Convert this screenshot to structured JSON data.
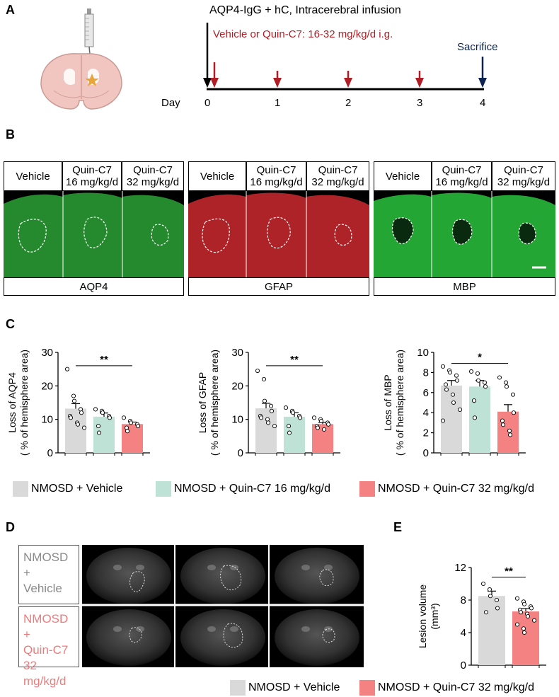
{
  "panel_a": {
    "label": "A",
    "title": "AQP4-IgG + hC, Intracerebral infusion",
    "treatment": "Vehicle or Quin-C7: 16-32 mg/kg/d i.g.",
    "sacrifice": "Sacrifice",
    "day_label": "Day",
    "days": [
      "0",
      "1",
      "2",
      "3",
      "4"
    ],
    "colors": {
      "treatment": "#b01d24",
      "sacrifice": "#0d2350"
    }
  },
  "panel_b": {
    "label": "B",
    "groups": [
      {
        "marker": "AQP4",
        "headers": [
          "Vehicle",
          "Quin-C7\n16 mg/kg/d",
          "Quin-C7\n32 mg/kg/d"
        ],
        "color": "#2a9a34"
      },
      {
        "marker": "GFAP",
        "headers": [
          "Vehicle",
          "Quin-C7\n16 mg/kg/d",
          "Quin-C7\n32 mg/kg/d"
        ],
        "color": "#b8252a"
      },
      {
        "marker": "MBP",
        "headers": [
          "Vehicle",
          "Quin-C7\n16 mg/kg/d",
          "Quin-C7\n32 mg/kg/d"
        ],
        "color": "#28b83a"
      }
    ]
  },
  "panel_c": {
    "label": "C"
  },
  "panel_d": {
    "label": "D",
    "row1_label": "NMOSD +\nVehicle",
    "row2_label": "NMOSD +\nQuin-C7 32\nmg/kg/d"
  },
  "panel_e": {
    "label": "E"
  },
  "legend_c": [
    {
      "name": "NMOSD + Vehicle",
      "color": "#d9d9d9"
    },
    {
      "name": "NMOSD + Quin-C7 16 mg/kg/d",
      "color": "#bfe2d6"
    },
    {
      "name": "NMOSD + Quin-C7 32 mg/kg/d",
      "color": "#f48282"
    }
  ],
  "legend_e": [
    {
      "name": "NMOSD + Vehicle",
      "color": "#d9d9d9"
    },
    {
      "name": "NMOSD + Quin-C7 32 mg/kg/d",
      "color": "#f48282"
    }
  ],
  "chart_data": [
    {
      "type": "bar",
      "ylabel": "Loss of AQP4\n( % of hemisphere area)",
      "ylim": [
        0,
        30
      ],
      "yticks": [
        0,
        10,
        20,
        30
      ],
      "categories": [
        "NMOSD + Vehicle",
        "NMOSD + Quin-C7 16 mg/kg/d",
        "NMOSD + Quin-C7 32 mg/kg/d"
      ],
      "values": [
        13.2,
        10.8,
        8.6
      ],
      "errors": [
        1.5,
        1.1,
        0.6
      ],
      "points": [
        [
          25,
          17,
          15.5,
          13,
          12,
          11,
          10.5,
          9,
          8.5,
          7.5
        ],
        [
          13,
          12.5,
          12,
          11,
          10.5,
          8,
          6
        ],
        [
          10.5,
          9.5,
          9,
          8.5,
          8,
          7.5,
          6.5
        ]
      ],
      "significance": {
        "label": "**",
        "from": 0,
        "to": 2,
        "y": 26
      }
    },
    {
      "type": "bar",
      "ylabel": "Loss of GFAP\n( % of hemisphere area)",
      "ylim": [
        0,
        30
      ],
      "yticks": [
        0,
        10,
        20,
        30
      ],
      "categories": [
        "NMOSD + Vehicle",
        "NMOSD + Quin-C7 16 mg/kg/d",
        "NMOSD + Quin-C7 32 mg/kg/d"
      ],
      "values": [
        13.3,
        10.8,
        8.6
      ],
      "errors": [
        1.5,
        1.2,
        0.5
      ],
      "points": [
        [
          24.5,
          22,
          15.5,
          14,
          12.5,
          11,
          10.5,
          10,
          9,
          8
        ],
        [
          13.5,
          12.5,
          12,
          11,
          10.5,
          8,
          6
        ],
        [
          10.5,
          10,
          9.5,
          9,
          8.5,
          8,
          7.5,
          7
        ]
      ],
      "significance": {
        "label": "**",
        "from": 0,
        "to": 2,
        "y": 26
      }
    },
    {
      "type": "bar",
      "ylabel": "Loss of MBP\n( % of hemisphere area)",
      "ylim": [
        0,
        10
      ],
      "yticks": [
        0,
        2,
        4,
        6,
        8,
        10
      ],
      "categories": [
        "NMOSD + Vehicle",
        "NMOSD + Quin-C7 16 mg/kg/d",
        "NMOSD + Quin-C7 32 mg/kg/d"
      ],
      "values": [
        6.7,
        6.6,
        4.1
      ],
      "errors": [
        0.5,
        0.6,
        0.7
      ],
      "points": [
        [
          8.6,
          8.2,
          8,
          7.7,
          7.2,
          6.8,
          6.3,
          5.8,
          5,
          4.3,
          3.2
        ],
        [
          8.1,
          7.9,
          7.2,
          7,
          6.6,
          5.2,
          3.5
        ],
        [
          7.5,
          7,
          6.6,
          5.8,
          4,
          3.2,
          2.8,
          2.2,
          1.8
        ]
      ],
      "significance": {
        "label": "*",
        "from": 0,
        "to": 2,
        "y": 8.9
      }
    },
    {
      "type": "bar",
      "ylabel": "Lesion volume\n(mm³)",
      "ylim": [
        0,
        12
      ],
      "yticks": [
        0,
        4,
        8,
        12
      ],
      "categories": [
        "NMOSD + Vehicle",
        "NMOSD + Quin-C7 32 mg/kg/d"
      ],
      "values": [
        8.5,
        6.6
      ],
      "errors": [
        0.6,
        0.35
      ],
      "points": [
        [
          10,
          9.3,
          8.5,
          8,
          7,
          6.5
        ],
        [
          8.2,
          7.8,
          7.5,
          7.2,
          7,
          6.8,
          6.5,
          6.3,
          6,
          5.5,
          5,
          4.5,
          4
        ]
      ],
      "significance": {
        "label": "**",
        "from": 0,
        "to": 1,
        "y": 10.8
      }
    }
  ]
}
